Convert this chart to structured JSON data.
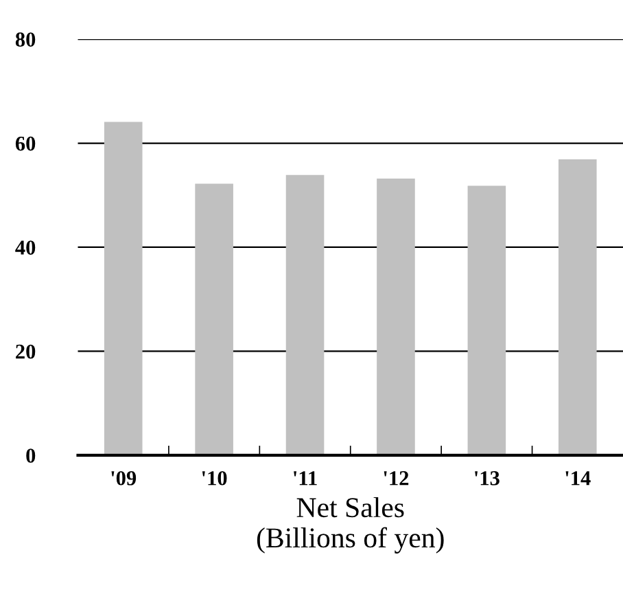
{
  "chart_data": {
    "type": "bar",
    "categories": [
      "'09",
      "'10",
      "'11",
      "'12",
      "'13",
      "'14"
    ],
    "values": [
      64.1,
      52.2,
      53.9,
      53.2,
      51.8,
      56.9
    ],
    "color": "#c0c0c0",
    "xlabel": "Net Sales\n(Billions of yen)",
    "ylim": [
      0,
      80
    ],
    "yticks": [
      0,
      20,
      40,
      60,
      80
    ],
    "grid": "y"
  }
}
